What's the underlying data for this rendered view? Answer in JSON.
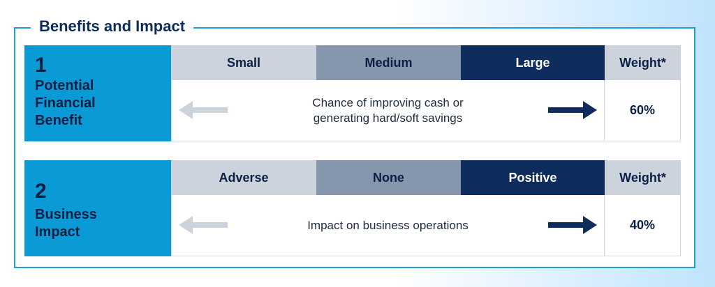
{
  "title": "Benefits and Impact",
  "rows": [
    {
      "number": "1",
      "label_lines": [
        "Potential",
        "Financial",
        "Benefit"
      ],
      "scale": [
        "Small",
        "Medium",
        "Large"
      ],
      "weight_header": "Weight*",
      "description_lines": [
        "Chance of improving cash or",
        "generating hard/soft savings"
      ],
      "weight": "60%"
    },
    {
      "number": "2",
      "label_lines": [
        "Business",
        "Impact"
      ],
      "scale": [
        "Adverse",
        "None",
        "Positive"
      ],
      "weight_header": "Weight*",
      "description_lines": [
        "Impact on business operations"
      ],
      "weight": "40%"
    }
  ],
  "colors": {
    "accent": "#0a9ad6",
    "navy": "#0f2d5c",
    "slate": "#8596ad",
    "light": "#ccd3dd",
    "arrow_light": "#ccd3dd",
    "arrow_dark": "#0f2d5c"
  },
  "icons": [
    "arrow-left-icon",
    "arrow-right-icon"
  ]
}
